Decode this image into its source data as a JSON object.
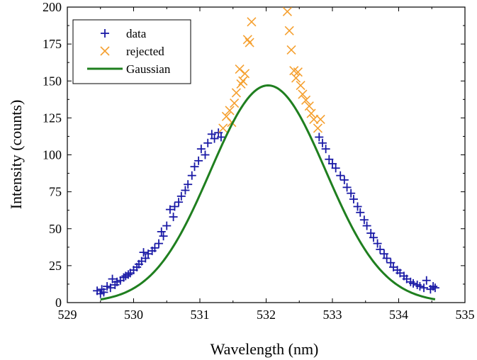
{
  "chart_data": {
    "type": "scatter",
    "xlabel": "Wavelength (nm)",
    "ylabel": "Intensity (counts)",
    "xlim": [
      529,
      535
    ],
    "ylim": [
      0,
      200
    ],
    "x_ticks": [
      529,
      530,
      531,
      532,
      533,
      534,
      535
    ],
    "y_ticks": [
      0,
      25,
      50,
      75,
      100,
      125,
      150,
      175,
      200
    ],
    "grid": false,
    "legend_position": "top-left",
    "legend": [
      {
        "name": "data",
        "marker": "+",
        "color": "#1a1aa6"
      },
      {
        "name": "rejected",
        "marker": "x",
        "color": "#f5a030"
      },
      {
        "name": "Gaussian",
        "marker": "line",
        "color": "#1f7f1f"
      }
    ],
    "gaussian": {
      "amplitude": 147,
      "center": 532.03,
      "sigma": 0.87,
      "x_range": [
        529.5,
        534.55
      ]
    },
    "series": [
      {
        "name": "data",
        "marker": "+",
        "color": "#1a1aa6",
        "points": [
          [
            529.45,
            8
          ],
          [
            529.5,
            6
          ],
          [
            529.52,
            9
          ],
          [
            529.55,
            7
          ],
          [
            529.6,
            11
          ],
          [
            529.65,
            10
          ],
          [
            529.68,
            16
          ],
          [
            529.72,
            12
          ],
          [
            529.75,
            14
          ],
          [
            529.8,
            15
          ],
          [
            529.85,
            17
          ],
          [
            529.88,
            18
          ],
          [
            529.92,
            19
          ],
          [
            529.95,
            20
          ],
          [
            530.0,
            22
          ],
          [
            530.05,
            24
          ],
          [
            530.08,
            26
          ],
          [
            530.12,
            28
          ],
          [
            530.15,
            34
          ],
          [
            530.18,
            30
          ],
          [
            530.22,
            33
          ],
          [
            530.28,
            35
          ],
          [
            530.32,
            37
          ],
          [
            530.38,
            40
          ],
          [
            530.42,
            48
          ],
          [
            530.45,
            45
          ],
          [
            530.5,
            52
          ],
          [
            530.55,
            63
          ],
          [
            530.6,
            58
          ],
          [
            530.62,
            65
          ],
          [
            530.68,
            68
          ],
          [
            530.72,
            72
          ],
          [
            530.78,
            76
          ],
          [
            530.82,
            80
          ],
          [
            530.88,
            86
          ],
          [
            530.92,
            92
          ],
          [
            530.98,
            96
          ],
          [
            531.02,
            104
          ],
          [
            531.08,
            100
          ],
          [
            531.12,
            108
          ],
          [
            531.18,
            114
          ],
          [
            531.22,
            111
          ],
          [
            531.28,
            115
          ],
          [
            531.32,
            112
          ],
          [
            532.8,
            112
          ],
          [
            532.85,
            108
          ],
          [
            532.9,
            104
          ],
          [
            532.95,
            97
          ],
          [
            533.0,
            94
          ],
          [
            533.05,
            91
          ],
          [
            533.12,
            86
          ],
          [
            533.18,
            83
          ],
          [
            533.22,
            78
          ],
          [
            533.28,
            74
          ],
          [
            533.32,
            70
          ],
          [
            533.38,
            65
          ],
          [
            533.42,
            61
          ],
          [
            533.48,
            56
          ],
          [
            533.52,
            52
          ],
          [
            533.58,
            47
          ],
          [
            533.62,
            44
          ],
          [
            533.68,
            40
          ],
          [
            533.72,
            36
          ],
          [
            533.78,
            33
          ],
          [
            533.82,
            30
          ],
          [
            533.88,
            27
          ],
          [
            533.92,
            24
          ],
          [
            533.98,
            22
          ],
          [
            534.02,
            20
          ],
          [
            534.08,
            18
          ],
          [
            534.12,
            16
          ],
          [
            534.18,
            14
          ],
          [
            534.22,
            13
          ],
          [
            534.28,
            12
          ],
          [
            534.32,
            11
          ],
          [
            534.38,
            10
          ],
          [
            534.42,
            15
          ],
          [
            534.48,
            9
          ],
          [
            534.52,
            11
          ],
          [
            534.55,
            10
          ]
        ]
      },
      {
        "name": "rejected",
        "marker": "x",
        "color": "#f5a030",
        "points": [
          [
            531.35,
            118
          ],
          [
            531.4,
            126
          ],
          [
            531.45,
            130
          ],
          [
            531.48,
            122
          ],
          [
            531.52,
            135
          ],
          [
            531.55,
            142
          ],
          [
            531.6,
            158
          ],
          [
            531.62,
            148
          ],
          [
            531.65,
            150
          ],
          [
            531.68,
            155
          ],
          [
            531.72,
            178
          ],
          [
            531.75,
            176
          ],
          [
            531.78,
            190
          ],
          [
            532.32,
            197
          ],
          [
            532.35,
            184
          ],
          [
            532.38,
            171
          ],
          [
            532.42,
            157
          ],
          [
            532.45,
            152
          ],
          [
            532.48,
            156
          ],
          [
            532.52,
            147
          ],
          [
            532.55,
            141
          ],
          [
            532.6,
            137
          ],
          [
            532.65,
            133
          ],
          [
            532.68,
            128
          ],
          [
            532.72,
            124
          ],
          [
            532.78,
            118
          ],
          [
            532.82,
            124
          ]
        ]
      }
    ]
  }
}
